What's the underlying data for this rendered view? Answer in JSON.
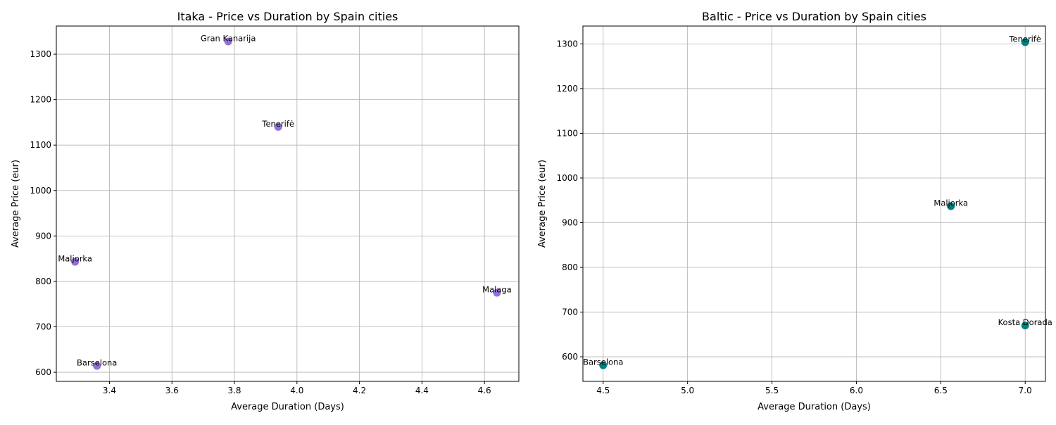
{
  "chart_data": [
    {
      "type": "scatter",
      "title": "Itaka - Price vs Duration by Spain cities",
      "xlabel": "Average Duration (Days)",
      "ylabel": "Average Price (eur)",
      "xlim": [
        3.23,
        4.71
      ],
      "ylim": [
        580,
        1362
      ],
      "xticks": [
        3.4,
        3.6,
        3.8,
        4.0,
        4.2,
        4.4,
        4.6
      ],
      "xtick_labels": [
        "3.4",
        "3.6",
        "3.8",
        "4.0",
        "4.2",
        "4.4",
        "4.6"
      ],
      "yticks": [
        600,
        700,
        800,
        900,
        1000,
        1100,
        1200,
        1300
      ],
      "ytick_labels": [
        "600",
        "700",
        "800",
        "900",
        "1000",
        "1100",
        "1200",
        "1300"
      ],
      "grid": true,
      "color": "#9370DB",
      "points": [
        {
          "label": "Gran Kanarija",
          "x": 3.78,
          "y": 1328
        },
        {
          "label": "Tenerifė",
          "x": 3.94,
          "y": 1140
        },
        {
          "label": "Maljorka",
          "x": 3.29,
          "y": 843
        },
        {
          "label": "Malaga",
          "x": 4.64,
          "y": 775
        },
        {
          "label": "Barselona",
          "x": 3.36,
          "y": 614
        }
      ]
    },
    {
      "type": "scatter",
      "title": "Baltic - Price vs Duration by Spain cities",
      "xlabel": "Average Duration (Days)",
      "ylabel": "Average Price (eur)",
      "xlim": [
        4.38,
        7.12
      ],
      "ylim": [
        545,
        1340
      ],
      "xticks": [
        4.5,
        5.0,
        5.5,
        6.0,
        6.5,
        7.0
      ],
      "xtick_labels": [
        "4.5",
        "5.0",
        "5.5",
        "6.0",
        "6.5",
        "7.0"
      ],
      "yticks": [
        600,
        700,
        800,
        900,
        1000,
        1100,
        1200,
        1300
      ],
      "ytick_labels": [
        "600",
        "700",
        "800",
        "900",
        "1000",
        "1100",
        "1200",
        "1300"
      ],
      "grid": true,
      "color": "#008080",
      "points": [
        {
          "label": "Tenerifė",
          "x": 7.0,
          "y": 1304
        },
        {
          "label": "Maljorka",
          "x": 6.56,
          "y": 937
        },
        {
          "label": "Kosta Dorada",
          "x": 7.0,
          "y": 670
        },
        {
          "label": "Barselona",
          "x": 4.5,
          "y": 581
        }
      ]
    }
  ]
}
